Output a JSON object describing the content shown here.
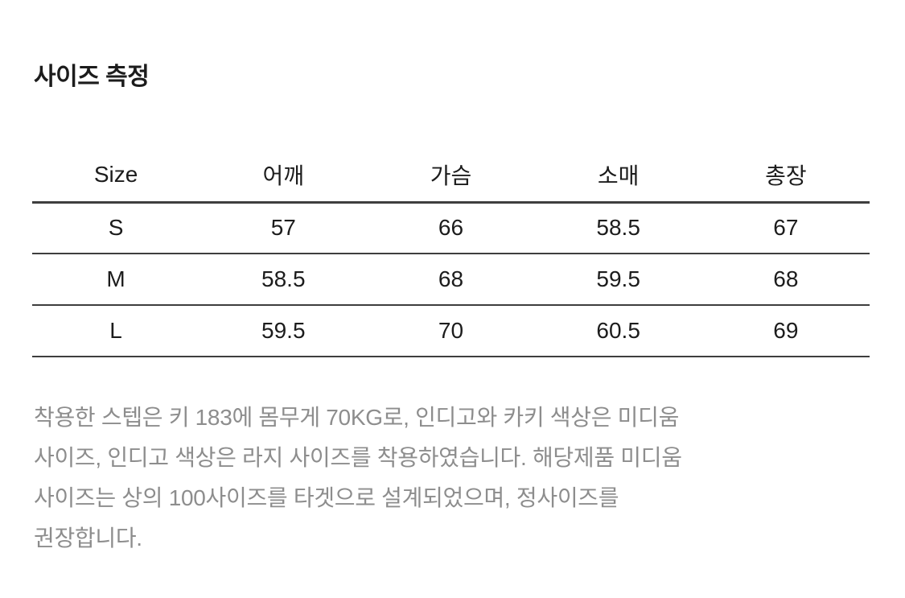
{
  "colors": {
    "background": "#ffffff",
    "text": "#1c1c1c",
    "rule": "#3e3e3e",
    "muted_text": "#8d8d8d"
  },
  "section": {
    "title": "사이즈 측정"
  },
  "size_table": {
    "columns": [
      "Size",
      "어깨",
      "가슴",
      "소매",
      "총장"
    ],
    "rows": [
      [
        "S",
        "57",
        "66",
        "58.5",
        "67"
      ],
      [
        "M",
        "58.5",
        "68",
        "59.5",
        "68"
      ],
      [
        "L",
        "59.5",
        "70",
        "60.5",
        "69"
      ]
    ]
  },
  "description": {
    "full_text": "착용한 스텝은 키 183에 몸무게 70KG로, 인디고와 카키 색상은 미디움 사이즈, 인디고 색상은 라지 사이즈를 착용하였습니다. 해당제품 미디움 사이즈는 상의 100사이즈를 타겟으로 설계되었으며, 정사이즈를 권장합니다.",
    "lines": [
      "착용한 스텝은 키 183에 몸무게 70KG로, 인디고와 카키 색상은 미디움",
      "사이즈, 인디고 색상은 라지 사이즈를 착용하였습니다. 해당제품 미디움",
      "사이즈는 상의 100사이즈를 타겟으로 설계되었으며, 정사이즈를",
      "권장합니다."
    ]
  }
}
